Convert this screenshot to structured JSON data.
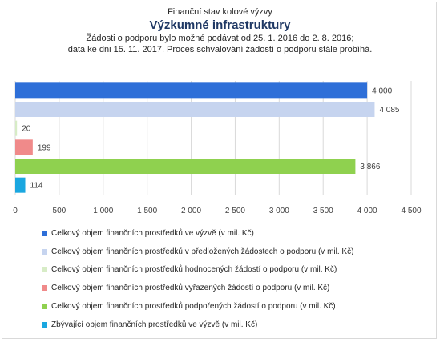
{
  "header": {
    "subtitle_top": "Finanční stav kolové výzvy",
    "title": "Výzkumné infrastruktury",
    "note_line1": "Žádosti o podporu bylo možné  podávat od 25. 1. 2016 do 2. 8. 2016;",
    "note_line2": "data ke dni 15. 11. 2017. Proces schvalování žádostí o podporu stále probíhá."
  },
  "chart_data": {
    "type": "bar",
    "orientation": "horizontal",
    "xlim": [
      0,
      4500
    ],
    "xticks": [
      0,
      500,
      1000,
      1500,
      2000,
      2500,
      3000,
      3500,
      4000,
      4500
    ],
    "xtick_labels": [
      "0",
      "500",
      "1 000",
      "1 500",
      "2 000",
      "2 500",
      "3 000",
      "3 500",
      "4 000",
      "4 500"
    ],
    "grid": "vertical",
    "legend_position": "bottom",
    "series": [
      {
        "name": "Celkový objem finančních prostředků ve výzvě (v mil. Kč)",
        "value": 4000,
        "label": "4 000",
        "color": "#2e6fd8"
      },
      {
        "name": "Celkový objem finančních prostředků v předložených žádostech o podporu (v mil. Kč)",
        "value": 4085,
        "label": "4 085",
        "color": "#c6d4ef"
      },
      {
        "name": "Celkový objem finančních prostředků hodnocených žádostí o podporu (v mil. Kč)",
        "value": 20,
        "label": "20",
        "color": "#d7ecc6"
      },
      {
        "name": "Celkový objem finančních prostředků vyřazených žádostí o podporu (v mil. Kč)",
        "value": 199,
        "label": "199",
        "color": "#f08a8a"
      },
      {
        "name": "Celkový objem finančních prostředků podpořených žádostí o podporu (v mil. Kč)",
        "value": 3866,
        "label": "3 866",
        "color": "#8fd14f"
      },
      {
        "name": "Zbývající objem finančních prostředků ve výzvě (v mil. Kč)",
        "value": 114,
        "label": "114",
        "color": "#1aa7e0"
      }
    ]
  }
}
